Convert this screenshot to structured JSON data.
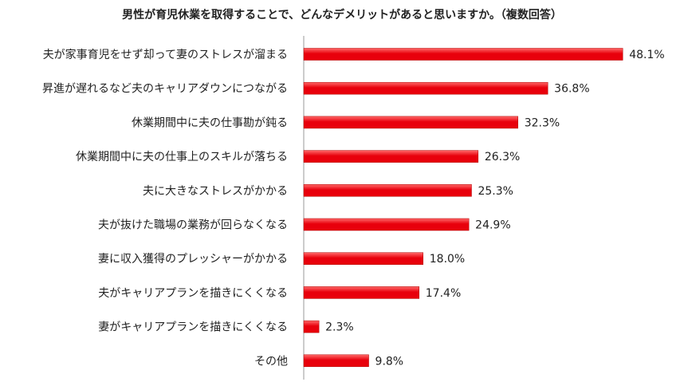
{
  "chart_data": {
    "type": "bar",
    "orientation": "horizontal",
    "title": "男性が育児休業を取得することで、どんなデメリットがあると思いますか。（複数回答）",
    "categories": [
      "夫が家事育児をせず却って妻のストレスが溜まる",
      "昇進が遅れるなど夫のキャリアダウンにつながる",
      "休業期間中に夫の仕事勘が鈍る",
      "休業期間中に夫の仕事上のスキルが落ちる",
      "夫に大きなストレスがかかる",
      "夫が抜けた職場の業務が回らなくなる",
      "妻に収入獲得のプレッシャーがかかる",
      "夫がキャリアプランを描きにくくなる",
      "妻がキャリアプランを描きにくくなる",
      "その他"
    ],
    "values": [
      48.1,
      36.8,
      32.3,
      26.3,
      25.3,
      24.9,
      18.0,
      17.4,
      2.3,
      9.8
    ],
    "value_labels": [
      "48.1%",
      "36.8%",
      "32.3%",
      "26.3%",
      "25.3%",
      "24.9%",
      "18.0%",
      "17.4%",
      "2.3%",
      "9.8%"
    ],
    "xlim": [
      0,
      50
    ],
    "grid": false,
    "bar_color": "#e8000c",
    "bar_color_light": "#ff6a6a"
  }
}
